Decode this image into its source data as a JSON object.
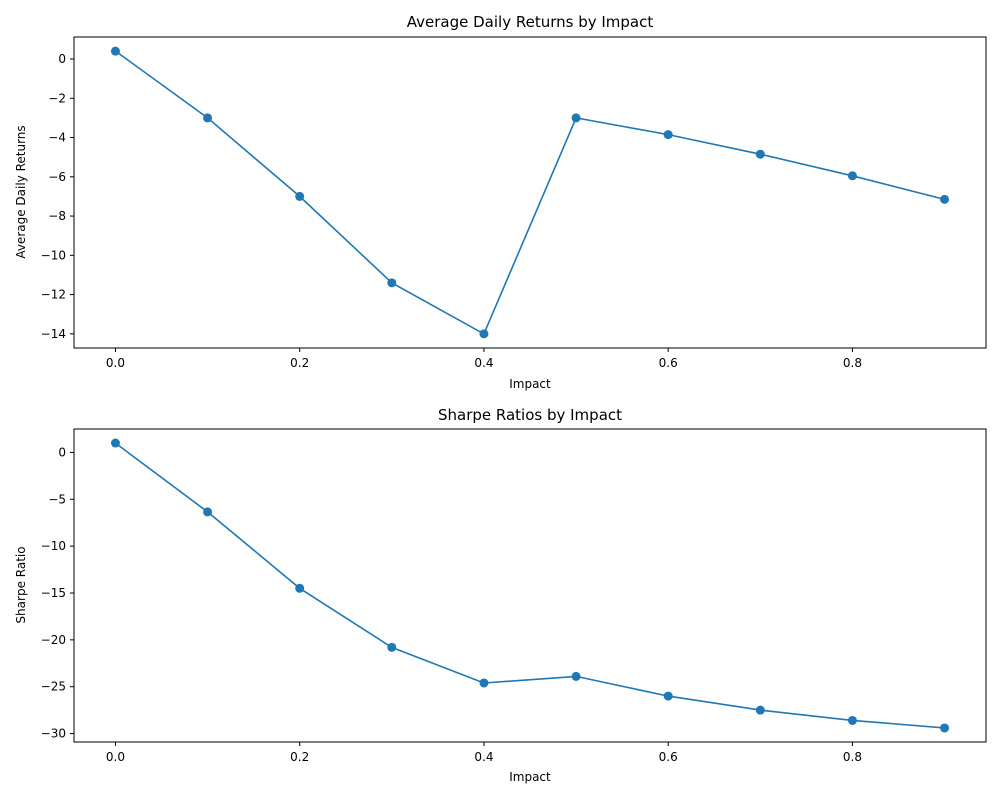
{
  "chart_data": [
    {
      "type": "line",
      "title": "Average Daily Returns by Impact",
      "xlabel": "Impact",
      "ylabel": "Average Daily Returns",
      "x": [
        0.0,
        0.1,
        0.2,
        0.3,
        0.4,
        0.5,
        0.6,
        0.7,
        0.8,
        0.9
      ],
      "series": [
        {
          "values": [
            0.4,
            -3.0,
            -7.0,
            -11.4,
            -14.0,
            -3.0,
            -3.85,
            -4.85,
            -5.95,
            -7.15
          ]
        }
      ],
      "xlim": [
        -0.045,
        0.945
      ],
      "ylim": [
        -14.72,
        1.12
      ],
      "xticks": [
        0.0,
        0.2,
        0.4,
        0.6,
        0.8
      ],
      "xtick_labels": [
        "0.0",
        "0.2",
        "0.4",
        "0.6",
        "0.8"
      ],
      "yticks": [
        0,
        -2,
        -4,
        -6,
        -8,
        -10,
        -12,
        -14
      ],
      "ytick_labels": [
        "0",
        "−2",
        "−4",
        "−6",
        "−8",
        "−10",
        "−12",
        "−14"
      ],
      "grid": false,
      "marker": "circle",
      "color": "#1f77b4"
    },
    {
      "type": "line",
      "title": "Sharpe Ratios by Impact",
      "xlabel": "Impact",
      "ylabel": "Sharpe Ratio",
      "x": [
        0.0,
        0.1,
        0.2,
        0.3,
        0.4,
        0.5,
        0.6,
        0.7,
        0.8,
        0.9
      ],
      "series": [
        {
          "values": [
            1.0,
            -6.35,
            -14.5,
            -20.8,
            -24.6,
            -23.9,
            -26.0,
            -27.5,
            -28.6,
            -29.4
          ]
        }
      ],
      "xlim": [
        -0.045,
        0.945
      ],
      "ylim": [
        -30.9,
        2.5
      ],
      "xticks": [
        0.0,
        0.2,
        0.4,
        0.6,
        0.8
      ],
      "xtick_labels": [
        "0.0",
        "0.2",
        "0.4",
        "0.6",
        "0.8"
      ],
      "yticks": [
        0,
        -5,
        -10,
        -15,
        -20,
        -25,
        -30
      ],
      "ytick_labels": [
        "0",
        "−5",
        "−10",
        "−15",
        "−20",
        "−25",
        "−30"
      ],
      "grid": false,
      "marker": "circle",
      "color": "#1f77b4"
    }
  ]
}
